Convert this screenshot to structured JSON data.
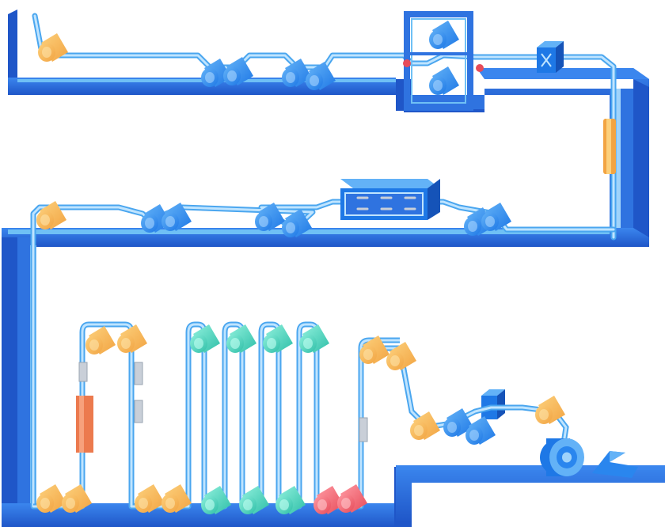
{
  "diagram": {
    "palette": {
      "frame_top": "#2f73e0",
      "frame_side": "#1f56c8",
      "frame_light": "#6fc0f5",
      "web": "#9fd3fb",
      "web_edge": "#4aa6ef",
      "roller_orange": "#f2a442",
      "roller_orange_light": "#fcd07c",
      "roller_blue": "#1e78e6",
      "roller_blue_light": "#63b2f7",
      "roller_teal": "#2fbfa8",
      "roller_teal_light": "#8ff0dc",
      "roller_red": "#e74c5a",
      "roller_red_light": "#ff9aa3",
      "heater": "#ec7a4e",
      "sensor": "#c9cfd8",
      "coil": "#2a86ee"
    },
    "components": [
      "unwind-roller",
      "guide-roller-pair",
      "nip-roller-pair",
      "inspection-cabinet",
      "sensor-box",
      "tension-sensor",
      "treatment-cabinet",
      "dryer-heater",
      "coating-tanks",
      "cooling-rollers",
      "rewind-coil",
      "cutting-knife"
    ]
  }
}
